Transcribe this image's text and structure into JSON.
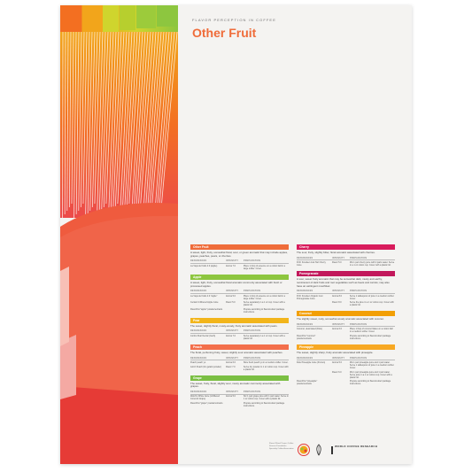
{
  "header": {
    "kicker": "FLAVOR PERCEPTION IN COFFEE",
    "title": "Other Fruit"
  },
  "table_headers": [
    "REFERENCES",
    "INTENSITY",
    "PREPARATION"
  ],
  "left_sections": [
    {
      "name": "Other Fruit",
      "color": "#ef6c3a",
      "description": "A sweet, light, fruity, somewhat floral, sour, or green aromatic that may include apples, grapes, peaches, pears, or cherries.",
      "rows": [
        [
          "La Vieja del Café 2.0 (apple)",
          "Aroma 7.0",
          "Place 1 drop of essence on a cotton ball in a large snifter. Cover."
        ]
      ]
    },
    {
      "name": "Apple",
      "color": "#8dc63f",
      "description": "A sweet, light, fruity, somewhat floral aromatic commonly associated with fresh or processed apples.",
      "rows": [
        [
          "La Vieja del Café 2.0 \"apple\"",
          "Aroma 5.0",
          "Place 1 drop of essence on a cotton ball in a large snifter. Cover."
        ],
        [
          "Certain Unfiltered Apple Juice",
          "Flavor 5.0",
          "Serve separately in a 1 oz cup. Cover with a plastic lid."
        ],
        [
          "Flavorfirst \"apple\" powder/extracts",
          "",
          "Prepare according to flavor/extract package instructions."
        ]
      ]
    },
    {
      "name": "Pear",
      "color": "#f2b51b",
      "description": "The sweet, slightly floral, musty-woody, fruity aromatic associated with pears.",
      "rows": [
        [
          "Jumbo Pear Nectar (Gerb)",
          "Aroma 7.0",
          "Serve separately in a 1 oz cup. Cover with a plastic lid."
        ]
      ]
    },
    {
      "name": "Peach",
      "color": "#f36f4b",
      "description": "The floral, perfuming fruity, sweet, slightly sour aromatic associated with peaches.",
      "rows": [
        [
          "Peach peach yo",
          "Aroma 6.0",
          "Slice fresh peach yo in a medium snifter. Cover."
        ],
        [
          "Jell-O Peach (for gelatin powder)",
          "Flavor 7.0",
          "Serve dry powder in 1 oz cotton cup. Cover with a plastic lid."
        ]
      ]
    },
    {
      "name": "Grape",
      "color": "#7bbf43",
      "description": "The sweet, fruity, floral, slightly sour, musty aromatic commonly associated with grapes.",
      "rows": [
        [
          "Welch's White Juice (Unfiltered Concord Grape)",
          "Aroma 5.0",
          "Stir 1 part grape juice with 1 part water. Serve in 1 oz cotton cup. Cover with a plastic lid."
        ],
        [
          "Flavorfirst \"grape\" powder/extracts",
          "",
          "Prepare according to flavor/extract package instructions."
        ]
      ]
    }
  ],
  "right_sections": [
    {
      "name": "Cherry",
      "color": "#d81b5c",
      "description": "The sour, fruity, slightly bitter, floral aromatic associated with cherries.",
      "rows": [
        [
          "R.W. Knudsen Just Tart Cherry Juice",
          "Flavor 5.0",
          "Mix 1 part cherry juice with 2 parts water. Serve in a 1 oz cotton cup. Cover with a plastic lid."
        ]
      ]
    },
    {
      "name": "Pomegranate",
      "color": "#c2185b",
      "description": "A sour, sweet fruity aromatic that may be somewhat dark, musty and earthy, reminiscent of dark fruits and root vegetables such as beets and carrots; may also have an astringent mouthfeel.",
      "rows": [
        [
          "R.W. Knudsen Organic Just Pomegranate Juice",
          "Aroma 8.0",
          "Serve 1 tablespoon of juice in a medium snifter. Cover."
        ],
        [
          "",
          "Flavor 8.0",
          "Serve the juice in a 1 oz cotton cup. Cover with a plastic lid."
        ]
      ]
    },
    {
      "name": "Coconut",
      "color": "#f29f05",
      "description": "The slightly sweet, nutty, somewhat woody aromatic associated with coconut.",
      "rows": [
        [
          "Coconut, desiccated (Dole)",
          "Aroma 6.0",
          "Place 1 tbsp of coconut flakes on a cotton ball in a medium snifter. Cover."
        ],
        [
          "Flavorfirst \"coconut\" powder/extracts",
          "",
          "Prepare according to flavor/extract package instructions."
        ]
      ]
    },
    {
      "name": "Pineapple",
      "color": "#f7a823",
      "description": "The sweet, slightly sharp, fruity aromatic associated with pineapple.",
      "rows": [
        [
          "Dole Pineapple Juice (Frozen)",
          "Aroma 5.0",
          "Mix 1 part pineapple juice and 1 part water. Serve 1 tablespoon of juice in a medium snifter. Cover."
        ],
        [
          "",
          "Flavor 6.0",
          "Mix 1 part pineapple juice and 1 part water. Serve juice in a 1 oz cotton cup. Cover with a plastic lid."
        ],
        [
          "Flavorfirst \"pineapple\" powder/extracts",
          "",
          "Prepare according to flavor/extract package instructions."
        ]
      ]
    }
  ],
  "footer": {
    "credit": "Flavor Wheel Project Coffee Science Foundation Specialty Coffee Association",
    "logo_text": "WORLD COFFEE RESEARCH"
  },
  "wheel_colors": [
    "#e53935",
    "#f36f21",
    "#f2a51b",
    "#cfd52d",
    "#8dc63f"
  ]
}
